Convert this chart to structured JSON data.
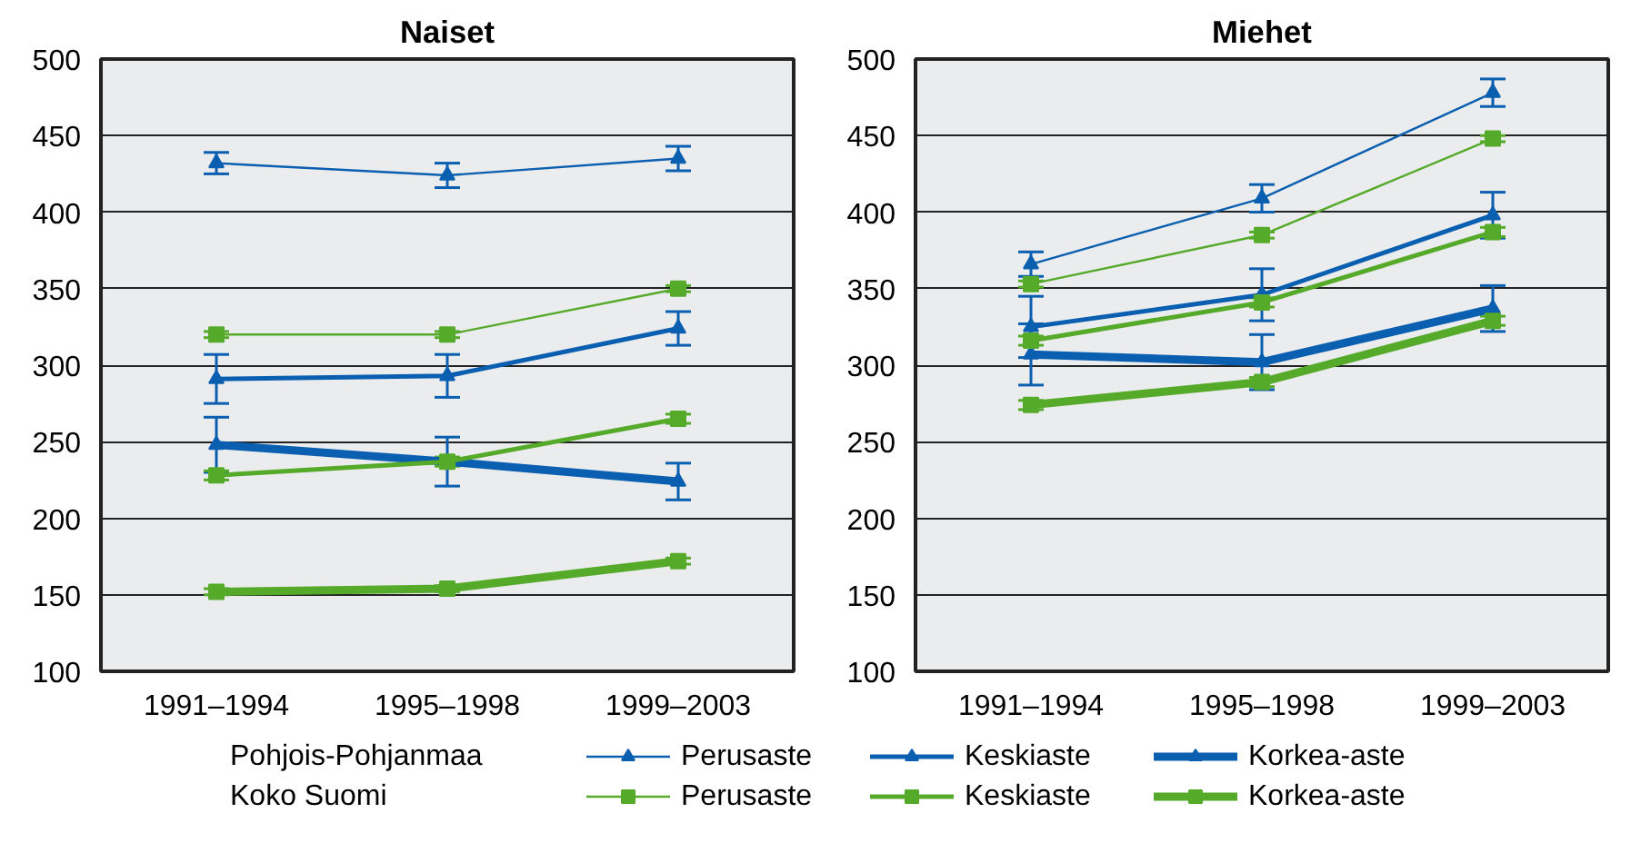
{
  "chart_data": [
    {
      "type": "line",
      "title": "Naiset",
      "categories": [
        "1991–1994",
        "1995–1998",
        "1999–2003"
      ],
      "ylim": [
        100,
        500
      ],
      "yticks": [
        100,
        150,
        200,
        250,
        300,
        350,
        400,
        450,
        500
      ],
      "grid": "y",
      "legend": "bottom",
      "annotations": [
        "Pohjois-Pohjanmaa",
        "Koko Suomi"
      ],
      "series": [
        {
          "name": "Perusaste",
          "color": "#0a5fb0",
          "marker": "triangle",
          "values": [
            432,
            424,
            435
          ],
          "errors": [
            7,
            8,
            8
          ]
        },
        {
          "name": "Keskiaste",
          "color": "#0a5fb0",
          "marker": "triangle",
          "values": [
            291,
            293,
            324
          ],
          "errors": [
            16,
            14,
            11
          ]
        },
        {
          "name": "Korkea-aste",
          "color": "#0a5fb0",
          "marker": "triangle",
          "values": [
            248,
            237,
            224
          ],
          "errors": [
            18,
            16,
            12
          ]
        },
        {
          "name": "Perusaste",
          "color": "#55aa2a",
          "marker": "square",
          "values": [
            320,
            320,
            350
          ],
          "errors": [
            2,
            2,
            2
          ]
        },
        {
          "name": "Keskiaste",
          "color": "#55aa2a",
          "marker": "square",
          "values": [
            228,
            237,
            265
          ],
          "errors": [
            3,
            3,
            3
          ]
        },
        {
          "name": "Korkea-aste",
          "color": "#55aa2a",
          "marker": "square",
          "values": [
            152,
            154,
            172
          ],
          "errors": [
            2,
            2,
            2
          ]
        }
      ]
    },
    {
      "type": "line",
      "title": "Miehet",
      "categories": [
        "1991–1994",
        "1995–1998",
        "1999–2003"
      ],
      "ylim": [
        100,
        500
      ],
      "yticks": [
        100,
        150,
        200,
        250,
        300,
        350,
        400,
        450,
        500
      ],
      "grid": "y",
      "series": [
        {
          "color": "#0a5fb0",
          "marker": "triangle",
          "values": [
            366,
            409,
            478
          ],
          "errors": [
            8,
            9,
            9
          ]
        },
        {
          "color": "#0a5fb0",
          "marker": "triangle",
          "values": [
            325,
            346,
            398
          ],
          "errors": [
            20,
            17,
            15
          ]
        },
        {
          "color": "#0a5fb0",
          "marker": "triangle",
          "values": [
            307,
            302,
            337
          ],
          "errors": [
            20,
            18,
            15
          ]
        },
        {
          "color": "#55aa2a",
          "marker": "square",
          "values": [
            353,
            385,
            448
          ],
          "errors": [
            2,
            2,
            2
          ]
        },
        {
          "color": "#55aa2a",
          "marker": "square",
          "values": [
            316,
            341,
            387
          ],
          "errors": [
            3,
            3,
            3
          ]
        },
        {
          "color": "#55aa2a",
          "marker": "square",
          "values": [
            274,
            289,
            329
          ],
          "errors": [
            3,
            3,
            3
          ]
        }
      ]
    }
  ]
}
